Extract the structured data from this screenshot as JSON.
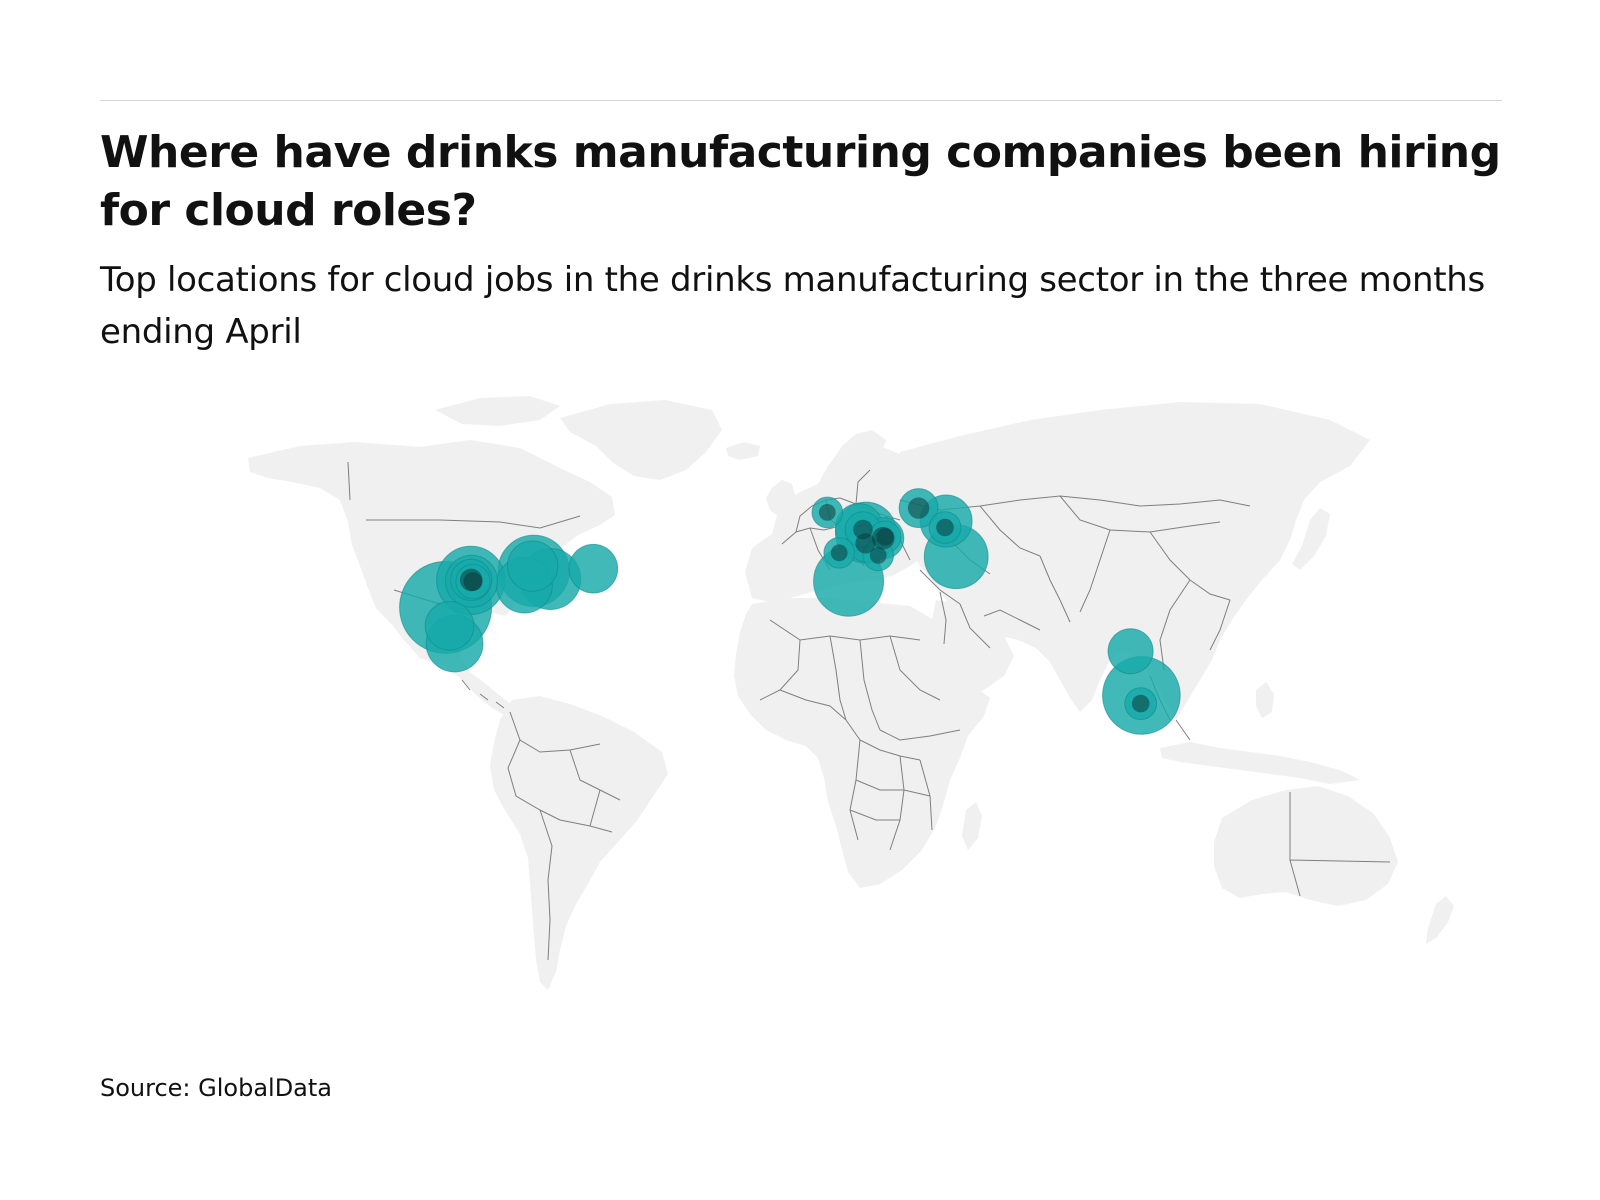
{
  "title": "Where have drinks manufacturing companies been hiring for cloud roles?",
  "subtitle": "Top locations for cloud jobs in the drinks manufacturing sector in the three months ending April",
  "source": "Source: GlobalData",
  "colors": {
    "land": "#f0f0f0",
    "border": "#7f7f7f",
    "bubble": "#17a9a9",
    "bubble_stroke": "#0f8a8a",
    "rule": "#d6d6d6"
  },
  "chart_data": {
    "type": "bubble-map",
    "projection": "equirectangular",
    "locations": [
      {
        "lon": -112.0,
        "lat": 33.4,
        "size": 1.0
      },
      {
        "lon": -105.0,
        "lat": 39.7,
        "size": 0.55
      },
      {
        "lon": -104.8,
        "lat": 39.5,
        "size": 0.32
      },
      {
        "lon": -104.9,
        "lat": 39.8,
        "size": 0.2
      },
      {
        "lon": -104.4,
        "lat": 39.4,
        "size": 0.14
      },
      {
        "lon": -87.6,
        "lat": 41.9,
        "size": 0.6
      },
      {
        "lon": -87.9,
        "lat": 43.0,
        "size": 0.3
      },
      {
        "lon": -83.0,
        "lat": 40.0,
        "size": 0.44
      },
      {
        "lon": -90.2,
        "lat": 38.6,
        "size": 0.37
      },
      {
        "lon": -71.1,
        "lat": 42.4,
        "size": 0.28
      },
      {
        "lon": -110.9,
        "lat": 29.1,
        "size": 0.28
      },
      {
        "lon": -109.5,
        "lat": 25.0,
        "size": 0.38
      },
      {
        "lon": -0.4,
        "lat": 39.5,
        "size": 0.58
      },
      {
        "lon": 4.4,
        "lat": 50.8,
        "size": 0.44
      },
      {
        "lon": 2.5,
        "lat": 52.1,
        "size": 0.26
      },
      {
        "lon": 3.6,
        "lat": 51.5,
        "size": 0.15
      },
      {
        "lon": 4.3,
        "lat": 48.3,
        "size": 0.16
      },
      {
        "lon": 9.2,
        "lat": 49.5,
        "size": 0.2
      },
      {
        "lon": 9.7,
        "lat": 49.8,
        "size": 0.12
      },
      {
        "lon": 7.8,
        "lat": 45.5,
        "size": 0.11
      },
      {
        "lon": -3.0,
        "lat": 46.1,
        "size": 0.11
      },
      {
        "lon": -6.3,
        "lat": 55.5,
        "size": 0.11
      },
      {
        "lon": 19.0,
        "lat": 56.5,
        "size": 0.18
      },
      {
        "lon": 26.6,
        "lat": 53.5,
        "size": 0.32
      },
      {
        "lon": 26.3,
        "lat": 52.0,
        "size": 0.12
      },
      {
        "lon": 29.4,
        "lat": 45.2,
        "size": 0.48
      },
      {
        "lon": 77.7,
        "lat": 23.2,
        "size": 0.24
      },
      {
        "lon": 80.7,
        "lat": 12.9,
        "size": 0.71
      },
      {
        "lon": 80.5,
        "lat": 11.0,
        "size": 0.12
      }
    ]
  }
}
